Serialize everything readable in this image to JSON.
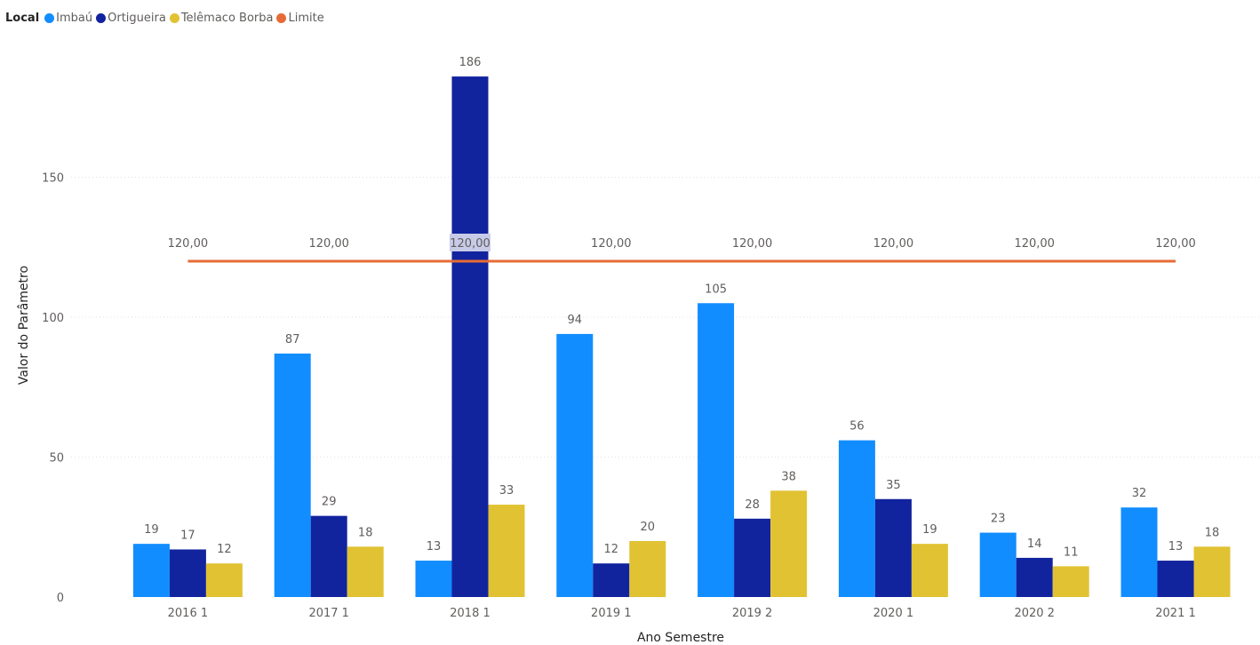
{
  "legend": {
    "title": "Local"
  },
  "colors": {
    "Imbaú": "#118DFF",
    "Ortigueira": "#12239E",
    "Telêmaco Borba": "#E1C233",
    "Limite": "#E66C37",
    "grid": "#E0E0E0",
    "text": "#605E5C",
    "highlight": "#C8CBE8"
  },
  "chart_data": {
    "type": "bar",
    "categories": [
      "2016 1",
      "2017 1",
      "2018 1",
      "2019 1",
      "2019 2",
      "2020 1",
      "2020 2",
      "2021 1"
    ],
    "series": [
      {
        "name": "Imbaú",
        "values": [
          19,
          87,
          13,
          94,
          105,
          56,
          23,
          32
        ],
        "labels": [
          "19",
          "87",
          "13",
          "94",
          "105",
          "56",
          "23",
          "32"
        ]
      },
      {
        "name": "Ortigueira",
        "values": [
          17,
          29,
          186,
          12,
          28,
          35,
          14,
          13
        ],
        "labels": [
          "17",
          "29",
          "186",
          "12",
          "28",
          "35",
          "14",
          "13"
        ]
      },
      {
        "name": "Telêmaco Borba",
        "values": [
          12,
          18,
          33,
          20,
          38,
          19,
          11,
          18
        ],
        "labels": [
          "12",
          "18",
          "33",
          "20",
          "38",
          "19",
          "11",
          "18"
        ]
      }
    ],
    "line": {
      "name": "Limite",
      "type": "line",
      "values": [
        120,
        120,
        120,
        120,
        120,
        120,
        120,
        120
      ],
      "labels": [
        "120,00",
        "120,00",
        "120,00",
        "120,00",
        "120,00",
        "120,00",
        "120,00",
        "120,00"
      ]
    },
    "xlabel": "Ano Semestre",
    "ylabel": "Valor do Parâmetro",
    "yticks": [
      0,
      50,
      100,
      150
    ],
    "ylim": [
      0,
      190
    ],
    "grid": true,
    "legend_position": "top-left"
  }
}
